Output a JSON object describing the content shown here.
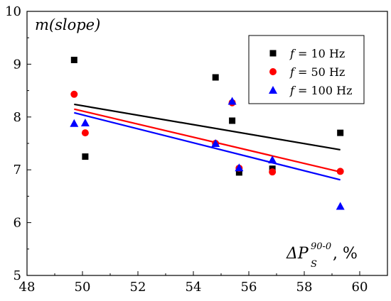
{
  "chart_data": {
    "type": "scatter",
    "ylabel": "m(slope)",
    "xlabel": {
      "main": "ΔP",
      "superscript": "90-0",
      "subscript": "S",
      "suffix": ", %"
    },
    "xlim": [
      48,
      61
    ],
    "ylim": [
      5,
      10
    ],
    "xticks": [
      48,
      50,
      52,
      54,
      56,
      58,
      60
    ],
    "yticks": [
      5,
      6,
      7,
      8,
      9,
      10
    ],
    "legend_position": "top-right",
    "series": [
      {
        "name": "f = 10 Hz",
        "label_italic": "f",
        "label_rest": " = 10 Hz",
        "marker": "square",
        "color": "#000000",
        "points": [
          [
            49.7,
            9.08
          ],
          [
            50.1,
            7.25
          ],
          [
            54.8,
            8.75
          ],
          [
            55.4,
            7.93
          ],
          [
            55.65,
            6.95
          ],
          [
            56.85,
            7.02
          ],
          [
            59.3,
            7.7
          ]
        ],
        "fit": [
          [
            49.7,
            8.24
          ],
          [
            59.3,
            7.38
          ]
        ]
      },
      {
        "name": "f = 50 Hz",
        "label_italic": "f",
        "label_rest": " = 50 Hz",
        "marker": "circle",
        "color": "#ff0000",
        "points": [
          [
            49.7,
            8.43
          ],
          [
            50.1,
            7.7
          ],
          [
            54.8,
            7.5
          ],
          [
            55.4,
            8.27
          ],
          [
            55.65,
            7.03
          ],
          [
            56.85,
            6.96
          ],
          [
            59.3,
            6.97
          ]
        ],
        "fit": [
          [
            49.7,
            8.15
          ],
          [
            59.3,
            6.96
          ]
        ]
      },
      {
        "name": "f = 100 Hz",
        "label_italic": "f",
        "label_rest": " = 100 Hz",
        "marker": "triangle",
        "color": "#0000ff",
        "points": [
          [
            49.7,
            7.88
          ],
          [
            50.1,
            7.89
          ],
          [
            54.8,
            7.5
          ],
          [
            55.4,
            8.3
          ],
          [
            55.65,
            7.04
          ],
          [
            56.85,
            7.19
          ],
          [
            59.3,
            6.31
          ]
        ],
        "fit": [
          [
            49.7,
            8.08
          ],
          [
            59.3,
            6.81
          ]
        ]
      }
    ]
  }
}
